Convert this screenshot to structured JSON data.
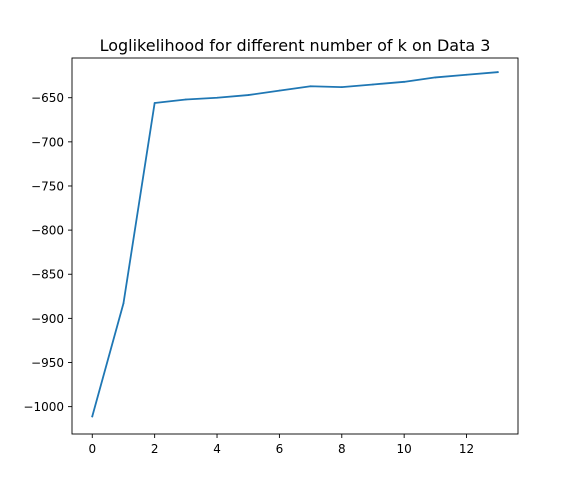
{
  "chart_data": {
    "type": "line",
    "title": "Loglikelihood for different number of k on Data 3",
    "xlabel": "",
    "ylabel": "",
    "xlim": [
      -0.65,
      13.65
    ],
    "ylim": [
      -1031,
      -605
    ],
    "xticks": [
      0,
      2,
      4,
      6,
      8,
      10,
      12
    ],
    "xtick_labels": [
      "0",
      "2",
      "4",
      "6",
      "8",
      "10",
      "12"
    ],
    "yticks": [
      -1000,
      -950,
      -900,
      -850,
      -800,
      -750,
      -700,
      -650
    ],
    "ytick_labels": [
      "−1000",
      "−950",
      "−900",
      "−850",
      "−800",
      "−750",
      "−700",
      "−650"
    ],
    "grid": false,
    "series": [
      {
        "color": "#1f77b4",
        "x": [
          0,
          1,
          2,
          3,
          4,
          5,
          6,
          7,
          8,
          9,
          10,
          11,
          12,
          13
        ],
        "y": [
          -1011,
          -883,
          -656,
          -652,
          -650,
          -647,
          -642,
          -637,
          -638,
          -635,
          -632,
          -627,
          -624,
          -621
        ]
      }
    ]
  }
}
